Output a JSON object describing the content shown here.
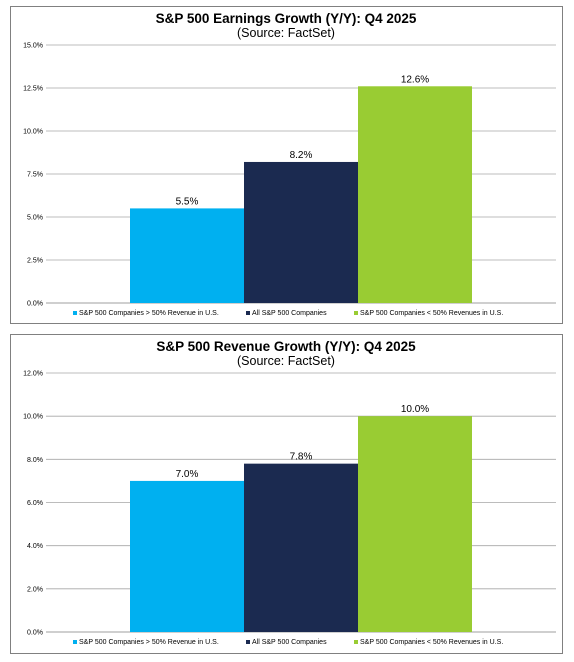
{
  "colors": {
    "series_0": "#00b0f0",
    "series_1": "#1b2a50",
    "series_2": "#99cc33",
    "gridline": "#a6a6a6"
  },
  "chart_data": [
    {
      "type": "bar",
      "title": "S&P 500 Earnings Growth (Y/Y): Q4 2025",
      "subtitle": "(Source: FactSet)",
      "categories": [
        "S&P 500 Companies > 50% Revenue in U.S.",
        "All S&P 500 Companies",
        "S&P 500 Companies < 50% Revenues in U.S."
      ],
      "values": [
        5.5,
        8.2,
        12.6
      ],
      "value_labels": [
        "5.5%",
        "8.2%",
        "12.6%"
      ],
      "ylim": [
        0,
        15
      ],
      "yticks": [
        "0.0%",
        "2.5%",
        "5.0%",
        "7.5%",
        "10.0%",
        "12.5%",
        "15.0%"
      ],
      "grid": true,
      "legend": "bottom"
    },
    {
      "type": "bar",
      "title": "S&P 500 Revenue Growth (Y/Y): Q4 2025",
      "subtitle": "(Source: FactSet)",
      "categories": [
        "S&P 500 Companies > 50% Revenue in U.S.",
        "All S&P 500 Companies",
        "S&P 500 Companies < 50% Revenues in U.S."
      ],
      "values": [
        7.0,
        7.8,
        10.0
      ],
      "value_labels": [
        "7.0%",
        "7.8%",
        "10.0%"
      ],
      "ylim": [
        0,
        12
      ],
      "yticks": [
        "0.0%",
        "2.0%",
        "4.0%",
        "6.0%",
        "8.0%",
        "10.0%",
        "12.0%"
      ],
      "grid": true,
      "legend": "bottom"
    }
  ]
}
